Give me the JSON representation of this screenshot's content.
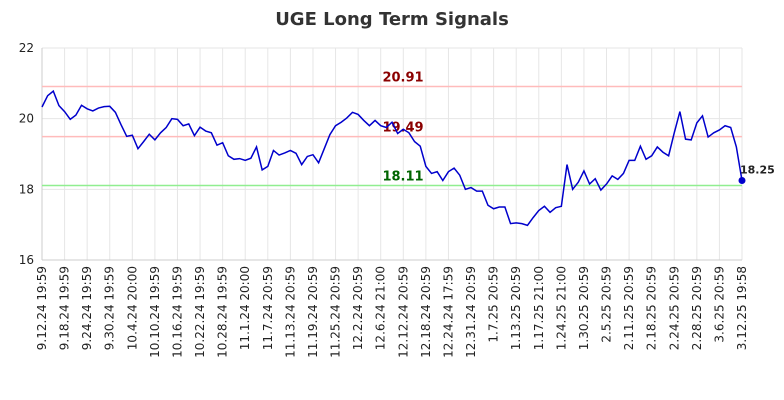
{
  "chart_data": {
    "type": "line",
    "title": "UGE Long Term Signals",
    "categories": [
      "9.12.24 19:59",
      null,
      null,
      null,
      "9.18.24 19:59",
      null,
      null,
      null,
      "9.24.24 19:59",
      null,
      null,
      null,
      "9.30.24 19:59",
      null,
      null,
      null,
      "10.4.24 20:00",
      null,
      null,
      null,
      "10.10.24 19:59",
      null,
      null,
      null,
      "10.16.24 19:59",
      null,
      null,
      null,
      "10.22.24 19:59",
      null,
      null,
      null,
      "10.28.24 19:59",
      null,
      null,
      null,
      "11.1.24 20:00",
      null,
      null,
      null,
      "11.7.24 20:59",
      null,
      null,
      null,
      "11.13.24 20:59",
      null,
      null,
      null,
      "11.19.24 20:59",
      null,
      null,
      null,
      "11.25.24 20:59",
      null,
      null,
      null,
      "12.2.24 20:59",
      null,
      null,
      null,
      "12.6.24 21:00",
      null,
      null,
      null,
      "12.12.24 20:59",
      null,
      null,
      null,
      "12.18.24 20:59",
      null,
      null,
      null,
      "12.24.24 17:59",
      null,
      null,
      null,
      "12.31.24 20:59",
      null,
      null,
      null,
      "1.7.25 20:59",
      null,
      null,
      null,
      "1.13.25 20:59",
      null,
      null,
      null,
      "1.17.25 21:00",
      null,
      null,
      null,
      "1.24.25 21:00",
      null,
      null,
      null,
      "1.30.25 20:59",
      null,
      null,
      null,
      "2.5.25 20:59",
      null,
      null,
      null,
      "2.11.25 20:59",
      null,
      null,
      null,
      "2.18.25 20:59",
      null,
      null,
      null,
      "2.24.25 20:59",
      null,
      null,
      null,
      "2.28.25 20:59",
      null,
      null,
      null,
      "3.6.25 20:59",
      null,
      null,
      null,
      "3.12.25 19:58"
    ],
    "series": [
      {
        "color": "#0000cc",
        "values": [
          20.33,
          20.65,
          20.78,
          20.37,
          20.2,
          19.98,
          20.1,
          20.38,
          20.28,
          20.22,
          20.3,
          20.34,
          20.35,
          20.18,
          19.83,
          19.5,
          19.53,
          19.15,
          19.35,
          19.56,
          19.4,
          19.6,
          19.75,
          20.0,
          19.98,
          19.8,
          19.85,
          19.52,
          19.76,
          19.65,
          19.6,
          19.25,
          19.32,
          18.95,
          18.85,
          18.87,
          18.82,
          18.88,
          19.2,
          18.55,
          18.65,
          19.1,
          18.97,
          19.03,
          19.1,
          19.02,
          18.7,
          18.93,
          18.98,
          18.75,
          19.15,
          19.55,
          19.8,
          19.9,
          20.02,
          20.18,
          20.12,
          19.95,
          19.8,
          19.95,
          19.8,
          19.75,
          19.9,
          19.58,
          19.7,
          19.6,
          19.35,
          19.22,
          18.65,
          18.45,
          18.5,
          18.25,
          18.5,
          18.6,
          18.4,
          18.0,
          18.05,
          17.95,
          17.95,
          17.55,
          17.45,
          17.5,
          17.5,
          17.03,
          17.05,
          17.03,
          16.98,
          17.2,
          17.4,
          17.52,
          17.35,
          17.48,
          17.52,
          18.7,
          18.0,
          18.2,
          18.52,
          18.15,
          18.3,
          17.98,
          18.15,
          18.38,
          18.28,
          18.45,
          18.82,
          18.82,
          19.22,
          18.85,
          18.95,
          19.2,
          19.05,
          18.95,
          19.6,
          20.2,
          19.42,
          19.4,
          19.88,
          20.08,
          19.48,
          19.6,
          19.68,
          19.8,
          19.75,
          19.2,
          18.25
        ]
      }
    ],
    "hlines": [
      {
        "value": 20.91,
        "color": "#ffbbbb",
        "label_color": "#8b0000"
      },
      {
        "value": 19.49,
        "color": "#ffbbbb",
        "label_color": "#8b0000"
      },
      {
        "value": 18.11,
        "color": "#90ee90",
        "label_color": "#006400"
      }
    ],
    "ylim": [
      16,
      22
    ],
    "yticks": [
      16,
      18,
      20,
      22
    ],
    "grid": true
  }
}
